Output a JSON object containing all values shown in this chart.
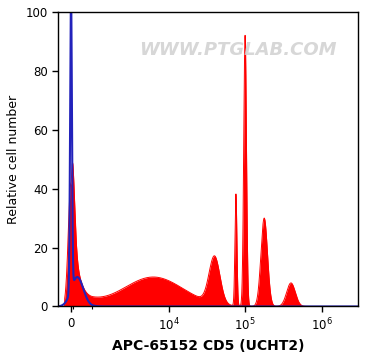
{
  "title": "",
  "xlabel": "APC-65152 CD5 (UCHT2)",
  "ylabel": "Relative cell number",
  "watermark": "WWW.PTGLAB.COM",
  "ylim": [
    0,
    100
  ],
  "yticks": [
    0,
    20,
    40,
    60,
    80,
    100
  ],
  "background_color": "#ffffff",
  "plot_bg_color": "#ffffff",
  "blue_color": "#2222bb",
  "red_color": "#ff0000",
  "red_fill_color": "#ff0000",
  "xlabel_fontsize": 10,
  "ylabel_fontsize": 9,
  "watermark_color": "#d0d0d0",
  "watermark_fontsize": 13,
  "symlog_linthresh": 1000,
  "symlog_linscale": 0.25,
  "xlim_min": -600,
  "xlim_max": 3000000
}
